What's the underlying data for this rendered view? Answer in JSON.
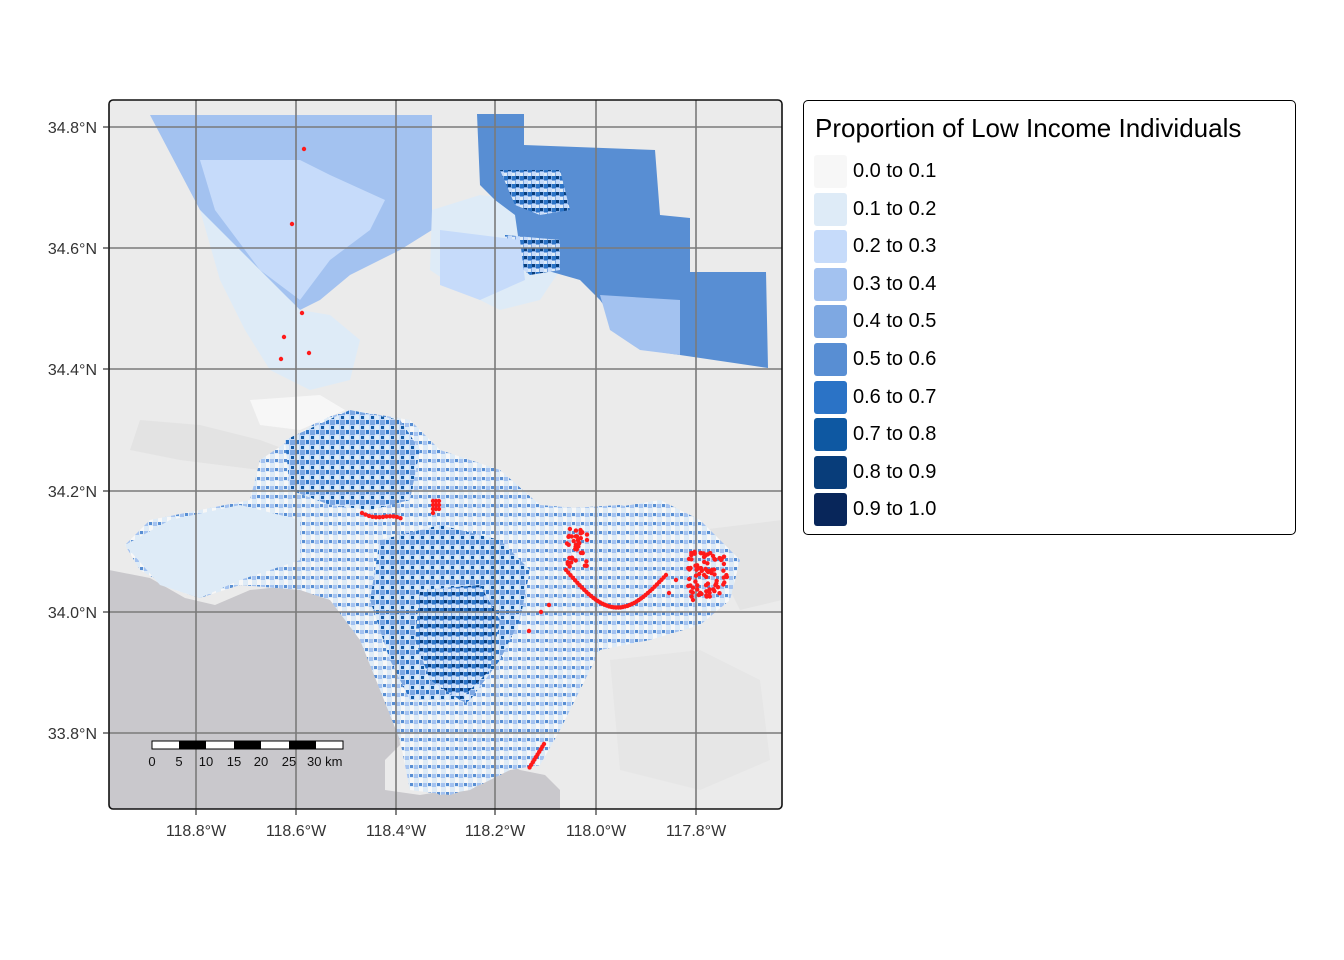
{
  "map": {
    "y_axis_labels": [
      "34.8°N",
      "34.6°N",
      "34.4°N",
      "34.2°N",
      "34.0°N",
      "33.8°N"
    ],
    "x_axis_labels": [
      "118.8°W",
      "118.6°W",
      "118.4°W",
      "118.2°W",
      "118.0°W",
      "117.8°W"
    ],
    "scale_bar": {
      "labels": [
        "0",
        "5",
        "10",
        "15",
        "20",
        "25",
        "30 km"
      ]
    },
    "colors": {
      "panel_bg": "#ebebeb",
      "ocean": "#c9c8cc",
      "grid": "#7a7a7a",
      "points": "#ff1a1a"
    }
  },
  "legend": {
    "title": "Proportion of Low Income Individuals",
    "items": [
      {
        "label": "0.0 to 0.1",
        "color": "#f7f7f7"
      },
      {
        "label": "0.1 to 0.2",
        "color": "#deebf7"
      },
      {
        "label": "0.2 to 0.3",
        "color": "#c6dbfa"
      },
      {
        "label": "0.3 to 0.4",
        "color": "#a3c2f0"
      },
      {
        "label": "0.4 to 0.5",
        "color": "#7ea8e2"
      },
      {
        "label": "0.5 to 0.6",
        "color": "#588ed3"
      },
      {
        "label": "0.6 to 0.7",
        "color": "#2b73c6"
      },
      {
        "label": "0.7 to 0.8",
        "color": "#0e58a2"
      },
      {
        "label": "0.8 to 0.9",
        "color": "#083d7a"
      },
      {
        "label": "0.9 to 1.0",
        "color": "#08265a"
      }
    ]
  }
}
